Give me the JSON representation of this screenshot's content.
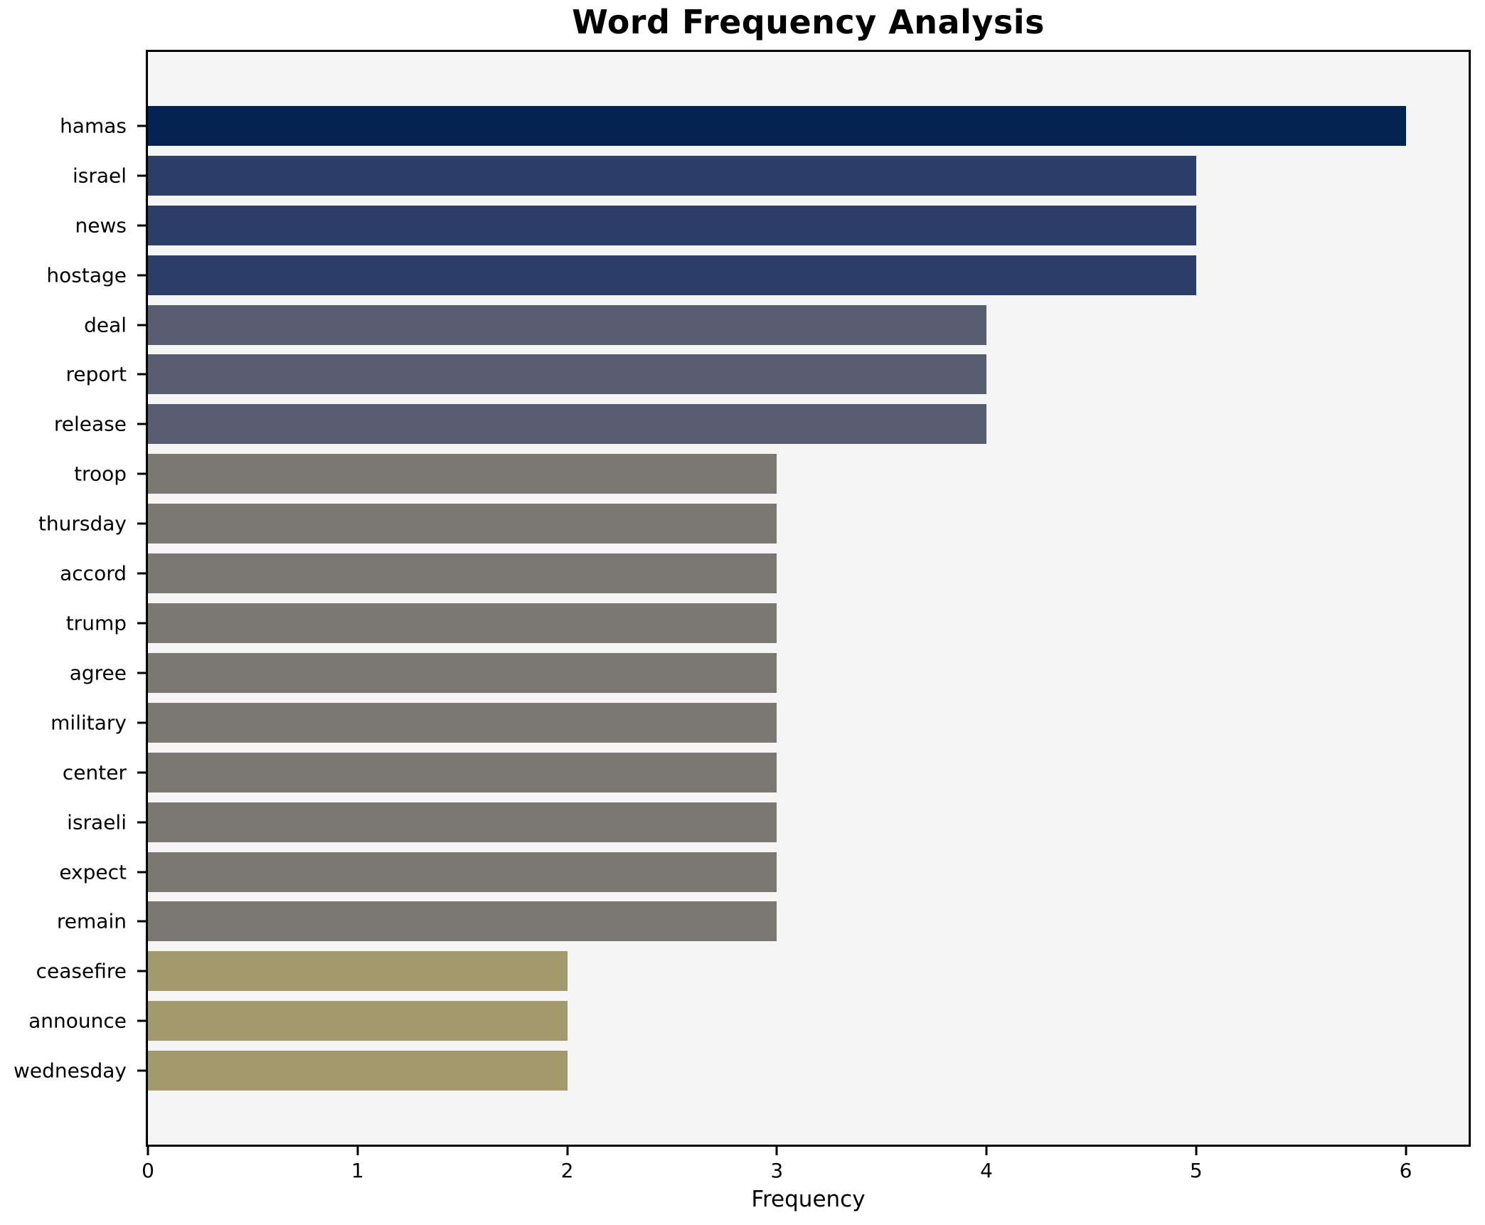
{
  "chart_data": {
    "type": "bar",
    "orientation": "horizontal",
    "title": "Word Frequency Analysis",
    "xlabel": "Frequency",
    "ylabel": "",
    "categories": [
      "hamas",
      "israel",
      "news",
      "hostage",
      "deal",
      "report",
      "release",
      "troop",
      "thursday",
      "accord",
      "trump",
      "agree",
      "military",
      "center",
      "israeli",
      "expect",
      "remain",
      "ceasefire",
      "announce",
      "wednesday"
    ],
    "values": [
      6,
      5,
      5,
      5,
      4,
      4,
      4,
      3,
      3,
      3,
      3,
      3,
      3,
      3,
      3,
      3,
      3,
      2,
      2,
      2
    ],
    "bar_colors": [
      "#022350",
      "#2d3f69",
      "#2d3f69",
      "#2d3f69",
      "#585e70",
      "#585e70",
      "#585e70",
      "#7b7873",
      "#7b7873",
      "#7b7873",
      "#7b7873",
      "#7b7873",
      "#7b7873",
      "#7b7873",
      "#7b7873",
      "#7b7873",
      "#7b7873",
      "#a29a6d",
      "#a29a6d",
      "#a29a6d"
    ],
    "xticks": [
      0,
      1,
      2,
      3,
      4,
      5,
      6
    ],
    "xlim": [
      0,
      6.3
    ],
    "grid": false,
    "legend": null,
    "plot_background": "#f5f5f6",
    "figure_background": "#ffffff",
    "spine_color": "#000000"
  }
}
